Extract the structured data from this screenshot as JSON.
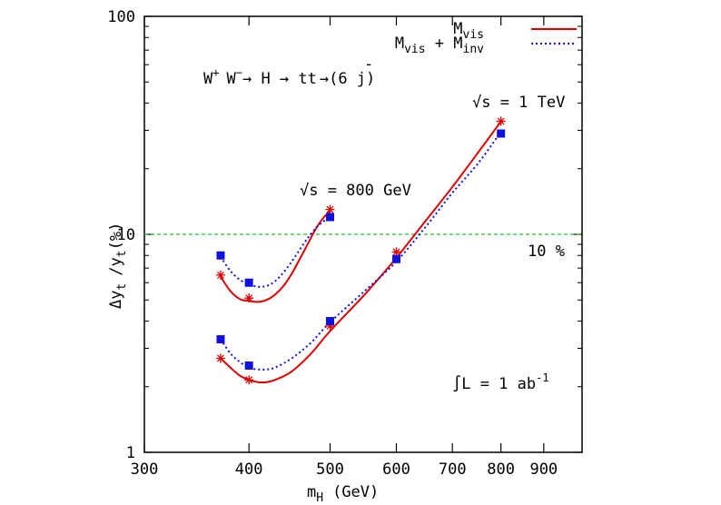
{
  "chart_data": {
    "type": "line",
    "xscale": "log",
    "yscale": "log",
    "xlim": [
      300,
      1000
    ],
    "ylim": [
      1,
      100
    ],
    "xlabel": "m",
    "xlabel_sub": "H",
    "xlabel_unit": "(GeV)",
    "ylabel": "Δy",
    "ylabel_sub1": "t",
    "ylabel_mid": "/y",
    "ylabel_sub2": "t",
    "ylabel_unit": "(%)",
    "xticks": [
      {
        "value": 300,
        "label": "300"
      },
      {
        "value": 400,
        "label": "400"
      },
      {
        "value": 500,
        "label": "500"
      },
      {
        "value": 600,
        "label": "600"
      },
      {
        "value": 700,
        "label": "700"
      },
      {
        "value": 800,
        "label": "800"
      },
      {
        "value": 900,
        "label": "900"
      }
    ],
    "yticks": [
      {
        "value": 1,
        "label": "1"
      },
      {
        "value": 10,
        "label": "10"
      },
      {
        "value": 100,
        "label": "100"
      }
    ],
    "reference_line": {
      "y": 10,
      "label": "10 %",
      "color": "#22cc22"
    },
    "series": [
      {
        "name": "M",
        "name_sub": "vis",
        "color": "#dd0000",
        "marker": "star",
        "line": "solid",
        "groups": [
          {
            "x": [
              370,
              400,
              500
            ],
            "y": [
              6.5,
              5.1,
              13.0
            ],
            "curve": [
              [
                370,
                6.4
              ],
              [
                380,
                5.5
              ],
              [
                390,
                5.05
              ],
              [
                400,
                4.95
              ],
              [
                410,
                4.9
              ],
              [
                420,
                5.0
              ],
              [
                430,
                5.3
              ],
              [
                440,
                5.8
              ],
              [
                450,
                6.6
              ],
              [
                460,
                7.7
              ],
              [
                470,
                9.0
              ],
              [
                480,
                10.5
              ],
              [
                490,
                11.8
              ],
              [
                500,
                12.8
              ]
            ]
          },
          {
            "x": [
              370,
              400,
              500,
              600,
              800
            ],
            "y": [
              2.7,
              2.15,
              3.8,
              8.3,
              33.0
            ],
            "curve": [
              [
                370,
                2.7
              ],
              [
                380,
                2.45
              ],
              [
                390,
                2.25
              ],
              [
                400,
                2.15
              ],
              [
                410,
                2.1
              ],
              [
                420,
                2.1
              ],
              [
                430,
                2.15
              ],
              [
                450,
                2.35
              ],
              [
                475,
                2.85
              ],
              [
                500,
                3.6
              ],
              [
                550,
                5.3
              ],
              [
                600,
                7.8
              ],
              [
                650,
                11.5
              ],
              [
                700,
                16.5
              ],
              [
                750,
                23.5
              ],
              [
                800,
                33.0
              ]
            ]
          }
        ]
      },
      {
        "name": "M",
        "name_sub": "vis",
        "name_mid": " + M",
        "name_sub2": "inv",
        "color": "#1111dd",
        "marker": "square",
        "line": "dotted",
        "groups": [
          {
            "x": [
              370,
              400,
              500
            ],
            "y": [
              8.0,
              6.0,
              12.0
            ],
            "curve": [
              [
                370,
                7.9
              ],
              [
                380,
                6.8
              ],
              [
                390,
                6.2
              ],
              [
                400,
                5.9
              ],
              [
                410,
                5.75
              ],
              [
                420,
                5.8
              ],
              [
                430,
                6.1
              ],
              [
                440,
                6.7
              ],
              [
                450,
                7.5
              ],
              [
                460,
                8.5
              ],
              [
                470,
                9.6
              ],
              [
                480,
                10.6
              ],
              [
                490,
                11.4
              ],
              [
                500,
                12.0
              ]
            ]
          },
          {
            "x": [
              370,
              400,
              500,
              600,
              800
            ],
            "y": [
              3.3,
              2.5,
              4.0,
              7.7,
              29.0
            ],
            "curve": [
              [
                370,
                3.3
              ],
              [
                380,
                2.85
              ],
              [
                390,
                2.6
              ],
              [
                400,
                2.45
              ],
              [
                410,
                2.4
              ],
              [
                420,
                2.4
              ],
              [
                430,
                2.45
              ],
              [
                450,
                2.7
              ],
              [
                475,
                3.2
              ],
              [
                500,
                3.95
              ],
              [
                550,
                5.5
              ],
              [
                600,
                7.5
              ],
              [
                650,
                10.8
              ],
              [
                700,
                15.5
              ],
              [
                750,
                21.0
              ],
              [
                800,
                29.5
              ]
            ]
          }
        ]
      }
    ],
    "annotations": {
      "process": "W+ W- → H → t t̄ →(6 j)",
      "proc_w1": "W",
      "proc_plus": "+",
      "proc_w2": "W",
      "proc_minus": "−",
      "proc_arrow1": "→ H → tt",
      "proc_bar": "-",
      "proc_arrow2": "→(6 j)",
      "sqrt_s_high": "√s = 1 TeV",
      "sqrt_s_low": "√s = 800 GeV",
      "lumi": "∫L = 1 ab",
      "lumi_exp": "-1"
    }
  }
}
